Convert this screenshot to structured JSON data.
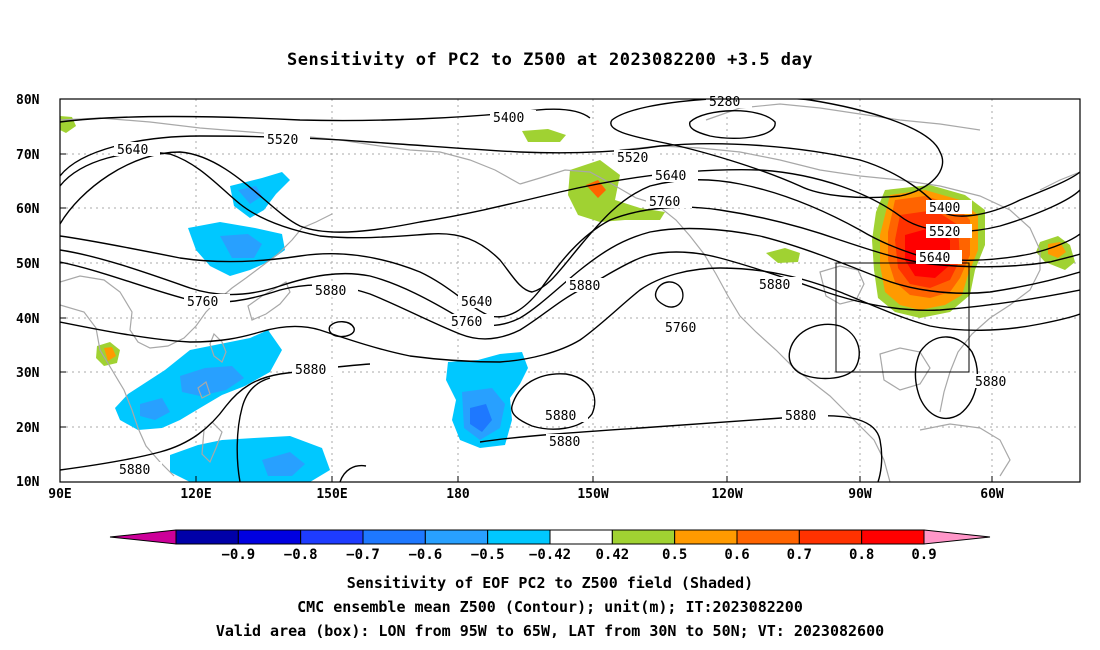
{
  "title": "Sensitivity of PC2 to Z500 at 2023082200 +3.5 day",
  "map": {
    "lat_labels": [
      "80N",
      "70N",
      "60N",
      "50N",
      "40N",
      "30N",
      "20N",
      "10N"
    ],
    "lon_labels": [
      "90E",
      "120E",
      "150E",
      "180",
      "150W",
      "120W",
      "90W",
      "60W"
    ],
    "contour_labels": [
      "5280",
      "5400",
      "5400",
      "5520",
      "5520",
      "5520",
      "5640",
      "5640",
      "5640",
      "5640",
      "5760",
      "5760",
      "5760",
      "5760",
      "5880",
      "5880",
      "5880",
      "5880",
      "5880",
      "5880",
      "5880",
      "5880",
      "5880"
    ],
    "valid_area_box": {
      "lon_min": -95,
      "lon_max": -65,
      "lat_min": 30,
      "lat_max": 50
    },
    "colors": {
      "contour": "#000000",
      "coastline": "#a8a8a8",
      "grid": "#a8a8a8"
    }
  },
  "colorbar": {
    "labels": [
      "-0.9",
      "-0.8",
      "-0.7",
      "-0.6",
      "-0.5",
      "-0.42",
      "0.42",
      "0.5",
      "0.6",
      "0.7",
      "0.8",
      "0.9"
    ],
    "colors": [
      "#cc0099",
      "#0000a8",
      "#0000e0",
      "#1e3cff",
      "#1e78ff",
      "#28a0ff",
      "#00c8ff",
      "#ffffff",
      "#a0d232",
      "#ff9a00",
      "#ff6400",
      "#ff3200",
      "#ff0000",
      "#ff96c8"
    ]
  },
  "caption": {
    "line1": "Sensitivity of EOF PC2 to Z500 field (Shaded)",
    "line2": "CMC ensemble mean Z500 (Contour); unit(m); IT:2023082200",
    "line3": "Valid area (box): LON from 95W to 65W, LAT from 30N to 50N; VT: 2023082600"
  }
}
